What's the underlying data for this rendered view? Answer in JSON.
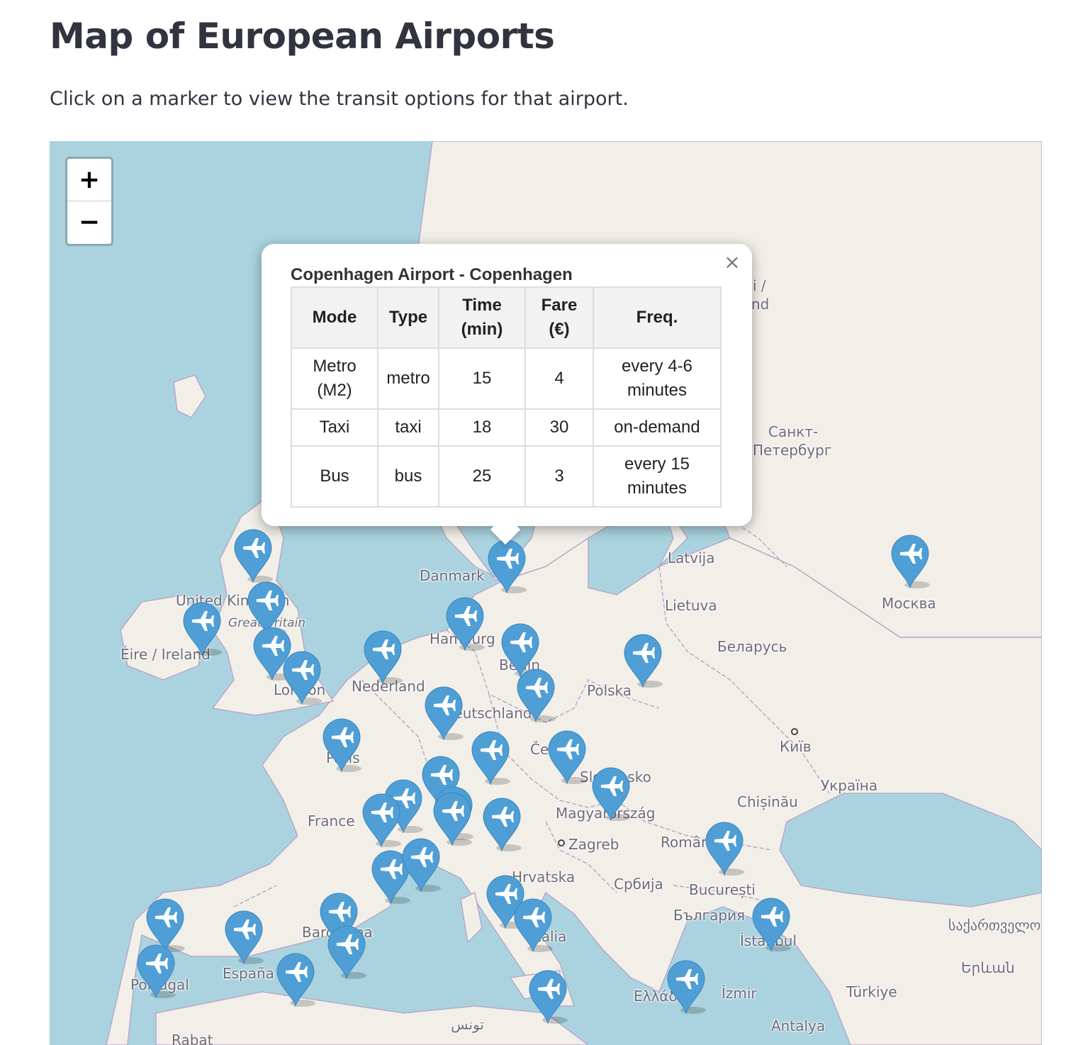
{
  "page": {
    "title": "Map of European Airports",
    "subtitle": "Click on a marker to view the transit options for that airport."
  },
  "map": {
    "zoom_in": "+",
    "zoom_out": "−",
    "colors": {
      "water": "#aad3df",
      "land": "#f2efe9",
      "border": "#b9a8c9",
      "marker": "#4f9fd6"
    },
    "marker_icon": "airplane-icon",
    "labels": [
      {
        "key": "lbl-uk",
        "text": "United Kingdom"
      },
      {
        "key": "lbl-gb",
        "text": "Great Britain"
      },
      {
        "key": "lbl-ie",
        "text": "Éire / Ireland"
      },
      {
        "key": "lbl-london",
        "text": "London"
      },
      {
        "key": "lbl-nl",
        "text": "Nederland"
      },
      {
        "key": "lbl-dk",
        "text": "Danmark"
      },
      {
        "key": "lbl-hamburg",
        "text": "Hamburg"
      },
      {
        "key": "lbl-berlin",
        "text": "Berlin"
      },
      {
        "key": "lbl-de",
        "text": "Deutschland"
      },
      {
        "key": "lbl-paris",
        "text": "Paris"
      },
      {
        "key": "lbl-fr",
        "text": "France"
      },
      {
        "key": "lbl-pl",
        "text": "Polska"
      },
      {
        "key": "lbl-cz",
        "text": "Česko"
      },
      {
        "key": "lbl-sk",
        "text": "Slovensko"
      },
      {
        "key": "lbl-hu",
        "text": "Magyarország"
      },
      {
        "key": "lbl-zagreb",
        "text": "Zagreb"
      },
      {
        "key": "lbl-hr",
        "text": "Hrvatska"
      },
      {
        "key": "lbl-rs",
        "text": "Србија"
      },
      {
        "key": "lbl-ro",
        "text": "România"
      },
      {
        "key": "lbl-bucuresti",
        "text": "București"
      },
      {
        "key": "lbl-bg",
        "text": "България"
      },
      {
        "key": "lbl-istanbul",
        "text": "İstanbul"
      },
      {
        "key": "lbl-izmir",
        "text": "İzmir"
      },
      {
        "key": "lbl-antalya",
        "text": "Antalya"
      },
      {
        "key": "lbl-tr",
        "text": "Türkiye"
      },
      {
        "key": "lbl-ge",
        "text": "საქართველო"
      },
      {
        "key": "lbl-yerevan",
        "text": "Երևան"
      },
      {
        "key": "lbl-gr",
        "text": "Ελλάδα"
      },
      {
        "key": "lbl-it",
        "text": "Italia"
      },
      {
        "key": "lbl-tn",
        "text": "تونس"
      },
      {
        "key": "lbl-rabat",
        "text": "Rabat"
      },
      {
        "key": "lbl-pt",
        "text": "Portugal"
      },
      {
        "key": "lbl-es",
        "text": "España"
      },
      {
        "key": "lbl-barcelona",
        "text": "Barcelona"
      },
      {
        "key": "lbl-lv",
        "text": "Latvija"
      },
      {
        "key": "lbl-lt",
        "text": "Lietuva"
      },
      {
        "key": "lbl-by",
        "text": "Беларусь"
      },
      {
        "key": "lbl-kyiv",
        "text": "Київ"
      },
      {
        "key": "lbl-ua",
        "text": "Україна"
      },
      {
        "key": "lbl-chisinau",
        "text": "Chișinău"
      },
      {
        "key": "lbl-moskva",
        "text": "Москва"
      },
      {
        "key": "lbl-spb1",
        "text": "Санкт-"
      },
      {
        "key": "lbl-spb2",
        "text": "Петербург"
      },
      {
        "key": "lbl-fi1",
        "text": "i /"
      },
      {
        "key": "lbl-fi2",
        "text": "nd"
      }
    ]
  },
  "popup": {
    "title": "Copenhagen Airport - Copenhagen",
    "close": "×",
    "headers": [
      "Mode",
      "Type",
      "Time (min)",
      "Fare (€)",
      "Freq."
    ],
    "rows": [
      [
        "Metro (M2)",
        "metro",
        "15",
        "4",
        "every 4-6 minutes"
      ],
      [
        "Taxi",
        "taxi",
        "18",
        "30",
        "on-demand"
      ],
      [
        "Bus",
        "bus",
        "25",
        "3",
        "every 15 minutes"
      ]
    ]
  }
}
